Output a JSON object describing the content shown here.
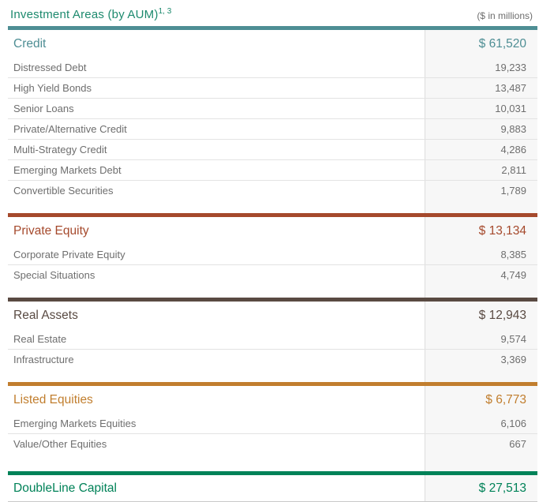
{
  "header": {
    "title": "Investment Areas (by AUM)",
    "superscript": "1, 3",
    "units_label": "($ in millions)"
  },
  "colors": {
    "title_green": "#1d8a6e",
    "credit_teal": "#4e8e94",
    "private_equity_red": "#a5492c",
    "real_assets_brown": "#594a42",
    "listed_equities_orange": "#c17e2e",
    "doubleline_green": "#008258",
    "sub_text_gray": "#6e6e6e",
    "value_column_bg": "#f7f7f7"
  },
  "table": {
    "sections": [
      {
        "id": "credit",
        "label": "Credit",
        "value": "$ 61,520",
        "accent": "#4e8e94",
        "rows": [
          {
            "label": "Distressed Debt",
            "value": "19,233"
          },
          {
            "label": "High Yield Bonds",
            "value": "13,487"
          },
          {
            "label": "Senior Loans",
            "value": "10,031"
          },
          {
            "label": "Private/Alternative Credit",
            "value": "9,883"
          },
          {
            "label": "Multi-Strategy Credit",
            "value": "4,286"
          },
          {
            "label": "Emerging Markets Debt",
            "value": "2,811"
          },
          {
            "label": "Convertible Securities",
            "value": "1,789"
          }
        ]
      },
      {
        "id": "private-equity",
        "label": "Private Equity",
        "value": "$ 13,134",
        "accent": "#a5492c",
        "rows": [
          {
            "label": "Corporate Private Equity",
            "value": "8,385"
          },
          {
            "label": "Special Situations",
            "value": "4,749"
          }
        ]
      },
      {
        "id": "real-assets",
        "label": "Real Assets",
        "value": "$ 12,943",
        "accent": "#594a42",
        "rows": [
          {
            "label": "Real Estate",
            "value": "9,574"
          },
          {
            "label": "Infrastructure",
            "value": "3,369"
          }
        ]
      },
      {
        "id": "listed-equities",
        "label": "Listed Equities",
        "value": "$ 6,773",
        "accent": "#c17e2e",
        "rows": [
          {
            "label": "Emerging Markets Equities",
            "value": "6,106"
          },
          {
            "label": "Value/Other Equities",
            "value": "667"
          }
        ]
      },
      {
        "id": "doubleline",
        "label": "DoubleLine Capital",
        "value": "$ 27,513",
        "accent": "#008258",
        "rows": []
      }
    ]
  }
}
